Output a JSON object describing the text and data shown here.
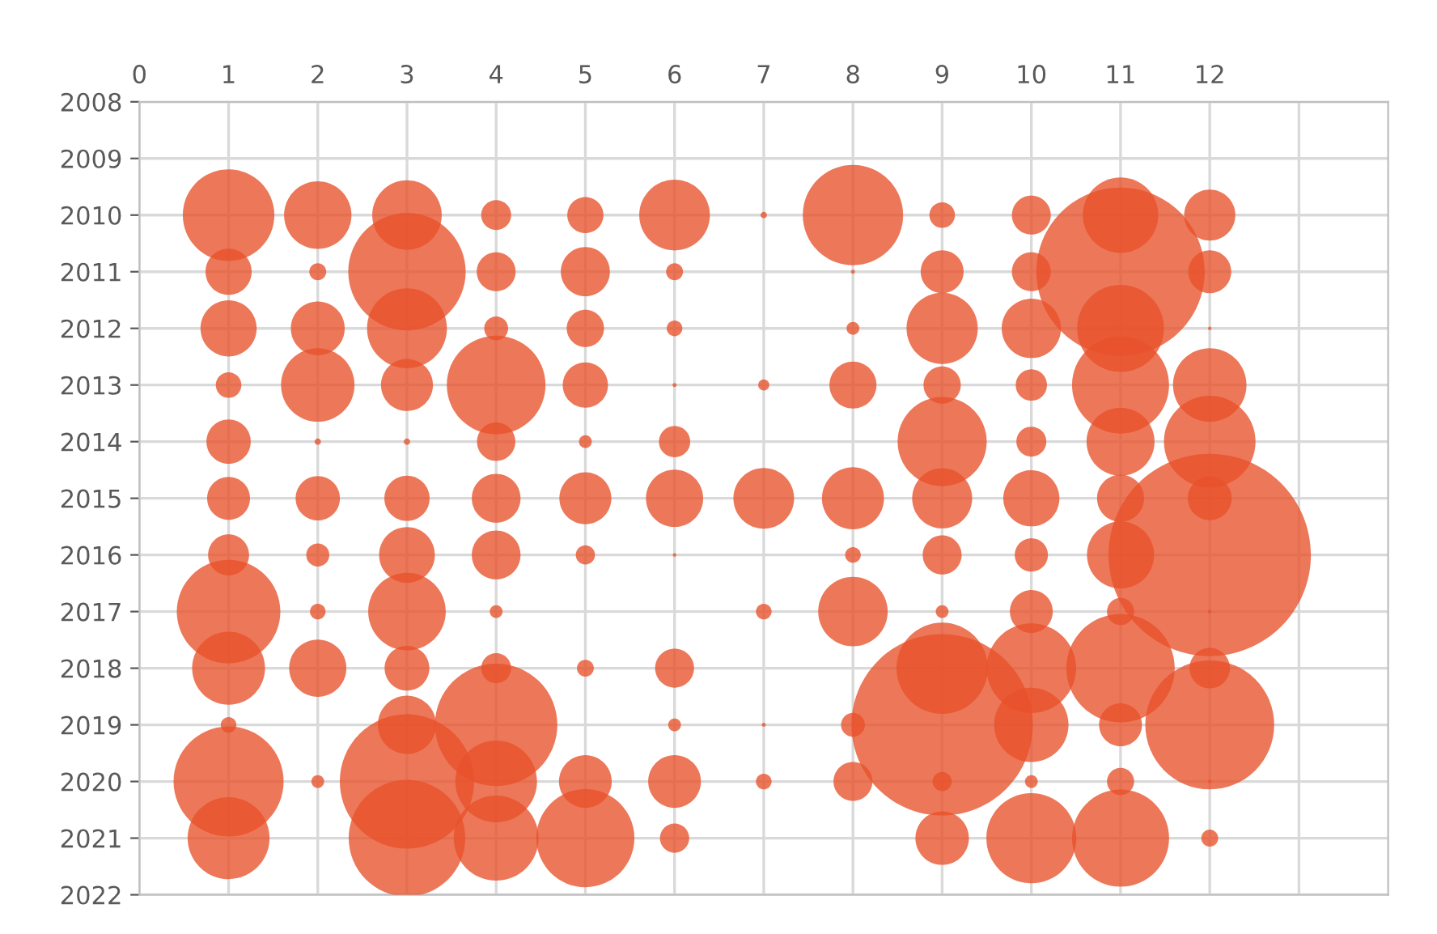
{
  "chart_data": {
    "type": "bubble",
    "relative": false,
    "xlim": [
      0,
      14
    ],
    "xticks": [
      0,
      1,
      2,
      3,
      4,
      5,
      6,
      7,
      8,
      9,
      10,
      11,
      12,
      {
        "value": 13,
        "label": null
      }
    ],
    "ylim": [
      2022,
      2008
    ],
    "yticks": [
      2008,
      2009,
      2010,
      2011,
      2012,
      2013,
      2014,
      2015,
      2016,
      2017,
      2018,
      2019,
      2020,
      2021,
      2022
    ],
    "grid": true,
    "legend": false,
    "series": [
      {
        "color": "#e8512a",
        "x": [
          1,
          1,
          1,
          1,
          1,
          1,
          1,
          1,
          1,
          1,
          1,
          1,
          2,
          2,
          2,
          2,
          2,
          2,
          2,
          2,
          2,
          2,
          3,
          3,
          3,
          3,
          3,
          3,
          3,
          3,
          3,
          3,
          3,
          3,
          4,
          4,
          4,
          4,
          4,
          4,
          4,
          4,
          4,
          4,
          4,
          4,
          5,
          5,
          5,
          5,
          5,
          5,
          5,
          5,
          5,
          5,
          6,
          6,
          6,
          6,
          6,
          6,
          6,
          6,
          6,
          6,
          6,
          7,
          7,
          7,
          7,
          7,
          7,
          8,
          8,
          8,
          8,
          8,
          8,
          8,
          8,
          8,
          9,
          9,
          9,
          9,
          9,
          9,
          9,
          9,
          9,
          9,
          9,
          9,
          10,
          10,
          10,
          10,
          10,
          10,
          10,
          10,
          10,
          10,
          10,
          10,
          11,
          11,
          11,
          11,
          11,
          11,
          11,
          11,
          11,
          11,
          11,
          11,
          12,
          12,
          12,
          12,
          12,
          12,
          12,
          12,
          12,
          12,
          12,
          12
        ],
        "values": [
          2010,
          2011,
          2012,
          2013,
          2014,
          2015,
          2016,
          2017,
          2018,
          2019,
          2020,
          2021,
          2010,
          2011,
          2012,
          2013,
          2014,
          2015,
          2016,
          2017,
          2018,
          2020,
          2010,
          2011,
          2012,
          2013,
          2014,
          2015,
          2016,
          2017,
          2018,
          2019,
          2020,
          2021,
          2010,
          2011,
          2012,
          2013,
          2014,
          2015,
          2016,
          2017,
          2018,
          2019,
          2020,
          2021,
          2010,
          2011,
          2012,
          2013,
          2014,
          2015,
          2016,
          2018,
          2020,
          2021,
          2010,
          2011,
          2012,
          2013,
          2014,
          2015,
          2016,
          2018,
          2019,
          2020,
          2021,
          2010,
          2013,
          2015,
          2017,
          2019,
          2020,
          2010,
          2011,
          2012,
          2013,
          2015,
          2016,
          2017,
          2019,
          2020,
          2010,
          2011,
          2012,
          2013,
          2014,
          2015,
          2016,
          2017,
          2018,
          2019,
          2020,
          2021,
          2010,
          2011,
          2012,
          2013,
          2014,
          2015,
          2016,
          2017,
          2018,
          2019,
          2020,
          2021,
          2010,
          2011,
          2012,
          2013,
          2014,
          2015,
          2016,
          2017,
          2018,
          2019,
          2020,
          2021,
          2010,
          2011,
          2012,
          2013,
          2014,
          2015,
          2016,
          2017,
          2018,
          2019,
          2020,
          2021
        ],
        "sizes": [
          0.205,
          0.052,
          0.077,
          0.016,
          0.048,
          0.045,
          0.041,
          0.262,
          0.13,
          0.006,
          0.296,
          0.164,
          0.111,
          0.007,
          0.071,
          0.132,
          0.001,
          0.048,
          0.013,
          0.006,
          0.08,
          0.004,
          0.118,
          0.337,
          0.156,
          0.066,
          0.001,
          0.05,
          0.076,
          0.147,
          0.049,
          0.083,
          0.441,
          0.332,
          0.022,
          0.037,
          0.014,
          0.238,
          0.036,
          0.058,
          0.058,
          0.004,
          0.022,
          0.366,
          0.163,
          0.176,
          0.032,
          0.059,
          0.034,
          0.05,
          0.004,
          0.066,
          0.009,
          0.007,
          0.068,
          0.235,
          0.122,
          0.007,
          0.006,
          0.0004,
          0.024,
          0.08,
          0.0003,
          0.037,
          0.004,
          0.068,
          0.021,
          0.001,
          0.003,
          0.09,
          0.006,
          0.0004,
          0.006,
          0.246,
          0.0004,
          0.004,
          0.054,
          0.094,
          0.006,
          0.118,
          0.014,
          0.037,
          0.016,
          0.045,
          0.124,
          0.034,
          0.194,
          0.088,
          0.037,
          0.004,
          0.204,
          0.803,
          0.009,
          0.07,
          0.037,
          0.037,
          0.086,
          0.024,
          0.022,
          0.077,
          0.027,
          0.045,
          0.196,
          0.135,
          0.004,
          0.198,
          0.139,
          0.692,
          0.184,
          0.23,
          0.113,
          0.054,
          0.11,
          0.018,
          0.287,
          0.045,
          0.018,
          0.23,
          0.064,
          0.045,
          0.0003,
          0.132,
          0.205,
          0.047,
          1.0,
          0.0003,
          0.04,
          0.406,
          0.0003,
          0.007
        ]
      }
    ]
  }
}
